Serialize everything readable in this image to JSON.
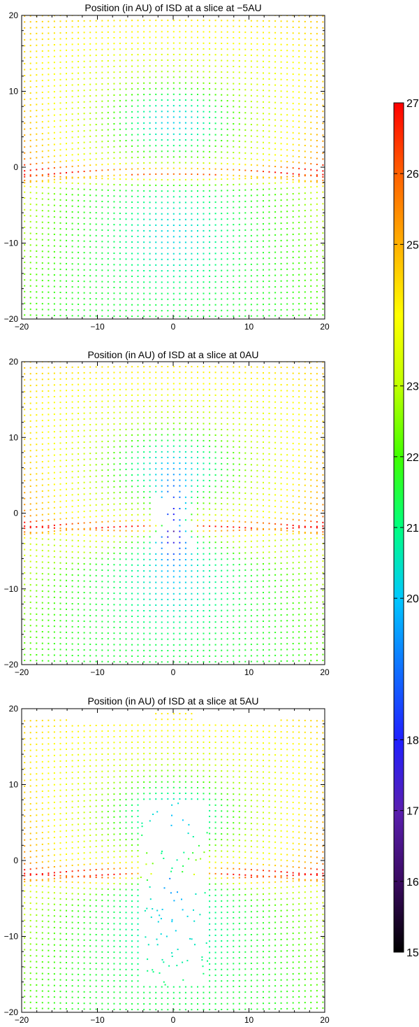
{
  "chart_data": [
    {
      "type": "scatter",
      "title": "Position (in AU) of ISD at a slice at −5AU",
      "xlim": [
        -20,
        20
      ],
      "ylim": [
        -20,
        20
      ],
      "xticks": [
        "−20",
        "−10",
        "0",
        "10",
        "20"
      ],
      "yticks": [
        "20",
        "10",
        "0",
        "−10",
        "−20"
      ],
      "color_field": "value",
      "features": {
        "sheet_y": -1,
        "pinch": 0,
        "void": 0,
        "cone_x": 0
      },
      "description_of_points": "grid of dust grains colored by value; red/orange sheet near y≈0, green-cyan below, yellow at top"
    },
    {
      "type": "scatter",
      "title": "Position (in AU) of ISD at a slice at 0AU",
      "xlim": [
        -20,
        20
      ],
      "ylim": [
        -20,
        20
      ],
      "xticks": [
        "−20",
        "−10",
        "0",
        "10",
        "20"
      ],
      "yticks": [
        "20",
        "10",
        "0",
        "−10",
        "−20"
      ],
      "color_field": "value",
      "features": {
        "sheet_y": -2,
        "pinch": 1,
        "void": 0,
        "cone_x": 2
      },
      "description_of_points": "dust grains with two orange wedges converging toward the origin, blue-purple core near center"
    },
    {
      "type": "scatter",
      "title": "Position (in AU) of ISD at a slice at 5AU",
      "xlim": [
        -20,
        20
      ],
      "ylim": [
        -20,
        20
      ],
      "xticks": [
        "−20",
        "−10",
        "0",
        "10",
        "20"
      ],
      "yticks": [
        "20",
        "10",
        "0",
        "−10",
        "−20"
      ],
      "color_field": "value",
      "features": {
        "sheet_y": -2,
        "pinch": 2,
        "void": 1,
        "cone_x": 6
      },
      "description_of_points": "dust grains forming a cavity; wedge structures at x≈±6 extend down to y≈−10"
    }
  ],
  "colorbar": {
    "min": 15,
    "max": 27,
    "ticks": [
      {
        "value": 15,
        "label": "15"
      },
      {
        "value": 16,
        "label": "16"
      },
      {
        "value": 17,
        "label": "17"
      },
      {
        "value": 18,
        "label": "18"
      },
      {
        "value": 20,
        "label": "20"
      },
      {
        "value": 21,
        "label": "21"
      },
      {
        "value": 22,
        "label": "22"
      },
      {
        "value": 23,
        "label": "23"
      },
      {
        "value": 25,
        "label": "25"
      },
      {
        "value": 26,
        "label": "26"
      },
      {
        "value": 27,
        "label": "27"
      }
    ],
    "colormap": [
      "#000000",
      "#3a0a60",
      "#5a1fb0",
      "#2020ff",
      "#1070ff",
      "#00c8ff",
      "#00ff80",
      "#40ff00",
      "#c0ff00",
      "#ffff00",
      "#ffb000",
      "#ff6000",
      "#ff0000"
    ]
  }
}
